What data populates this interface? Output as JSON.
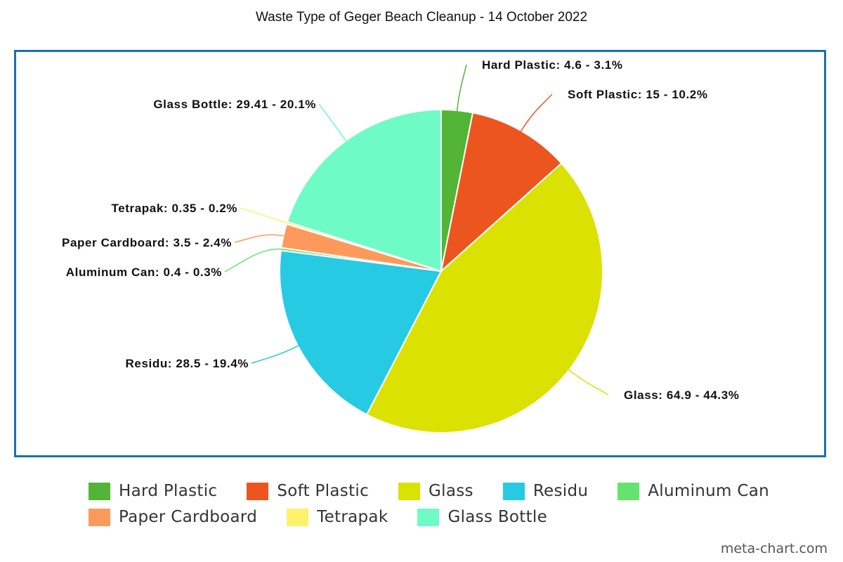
{
  "chart_data": {
    "type": "pie",
    "title": "Waste Type of Geger Beach Cleanup - 14 October 2022",
    "slices": [
      {
        "name": "Hard Plastic",
        "value": 4.6,
        "percent": "3.1%",
        "label": "Hard Plastic: 4.6 - 3.1%",
        "color": "#52b535"
      },
      {
        "name": "Soft Plastic",
        "value": 15,
        "percent": "10.2%",
        "label": "Soft Plastic: 15 - 10.2%",
        "color": "#ec551e"
      },
      {
        "name": "Glass",
        "value": 64.9,
        "percent": "44.3%",
        "label": "Glass: 64.9 - 44.3%",
        "color": "#dbe100"
      },
      {
        "name": "Residu",
        "value": 28.5,
        "percent": "19.4%",
        "label": "Residu: 28.5 - 19.4%",
        "color": "#26cbe3"
      },
      {
        "name": "Aluminum Can",
        "value": 0.4,
        "percent": "0.3%",
        "label": "Aluminum Can: 0.4 - 0.3%",
        "color": "#64e46e"
      },
      {
        "name": "Paper Cardboard",
        "value": 3.5,
        "percent": "2.4%",
        "label": "Paper Cardboard: 3.5 - 2.4%",
        "color": "#fd9a5b"
      },
      {
        "name": "Tetrapak",
        "value": 0.35,
        "percent": "0.2%",
        "label": "Tetrapak: 0.35 - 0.2%",
        "color": "#fff26a"
      },
      {
        "name": "Glass Bottle",
        "value": 29.41,
        "percent": "20.1%",
        "label": "Glass Bottle: 29.41 - 20.1%",
        "color": "#6ffbc6"
      }
    ],
    "legend": {
      "position": "bottom",
      "items": [
        "Hard Plastic",
        "Soft Plastic",
        "Glass",
        "Residu",
        "Aluminum Can",
        "Paper Cardboard",
        "Tetrapak",
        "Glass Bottle"
      ]
    }
  },
  "credit": "meta-chart.com"
}
